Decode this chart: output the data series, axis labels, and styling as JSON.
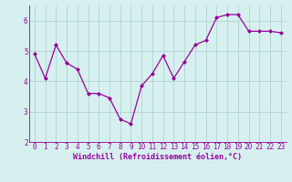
{
  "x": [
    0,
    1,
    2,
    3,
    4,
    5,
    6,
    7,
    8,
    9,
    10,
    11,
    12,
    13,
    14,
    15,
    16,
    17,
    18,
    19,
    20,
    21,
    22,
    23
  ],
  "y": [
    4.9,
    4.1,
    5.2,
    4.6,
    4.4,
    3.6,
    3.6,
    3.45,
    2.75,
    2.6,
    3.85,
    4.25,
    4.85,
    4.1,
    4.65,
    5.2,
    5.35,
    6.1,
    6.2,
    6.2,
    5.65,
    5.65,
    5.65,
    5.6
  ],
  "color": "#990099",
  "bg_color": "#d6f0f0",
  "grid_color": "#aacccc",
  "xlabel": "Windchill (Refroidissement éolien,°C)",
  "ylim": [
    2.0,
    6.5
  ],
  "xlim": [
    -0.5,
    23.5
  ],
  "yticks": [
    2,
    3,
    4,
    5,
    6
  ],
  "xticks": [
    0,
    1,
    2,
    3,
    4,
    5,
    6,
    7,
    8,
    9,
    10,
    11,
    12,
    13,
    14,
    15,
    16,
    17,
    18,
    19,
    20,
    21,
    22,
    23
  ],
  "xlabel_fontsize": 6.0,
  "tick_fontsize": 5.5,
  "marker": "D",
  "markersize": 2.0,
  "linewidth": 0.9
}
